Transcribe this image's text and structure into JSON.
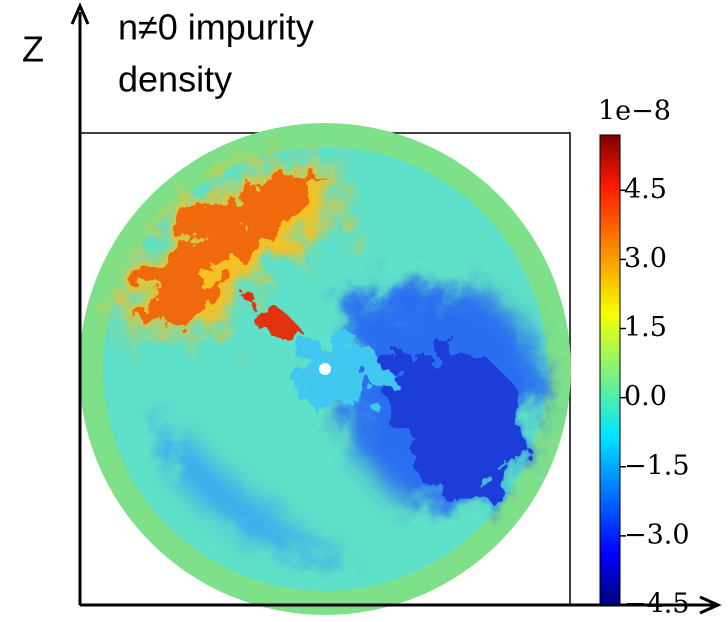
{
  "chart_data": {
    "type": "heatmap",
    "title": [
      "n≠0 impurity",
      "density"
    ],
    "y_label": "Z",
    "colormap": "jet",
    "colorbar_offset": "1e−8",
    "clim": [
      -4.5,
      5.7
    ],
    "cticks": [
      4.5,
      {
        "value": 3,
        "label": "3.0"
      },
      1.5,
      {
        "value": 0,
        "label": "0.0"
      },
      {
        "value": -1.5,
        "label": "−1.5"
      },
      {
        "value": -3,
        "label": "−3.0"
      },
      {
        "value": -4.5,
        "label": "−4.5"
      }
    ]
  }
}
